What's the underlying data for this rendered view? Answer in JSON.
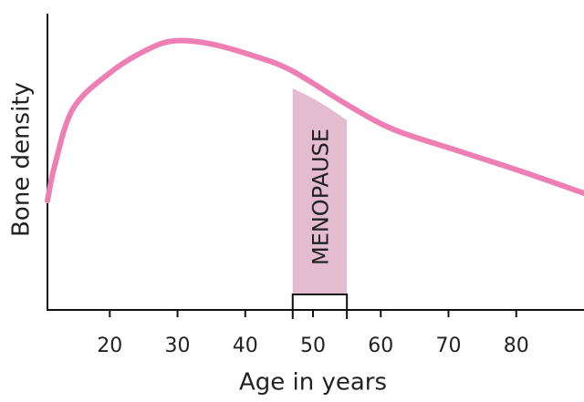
{
  "chart_data": {
    "type": "line",
    "x_label": "Age in years",
    "y_label": "Bone density",
    "x": [
      10.8,
      11.9,
      14.6,
      20,
      25.4,
      29.5,
      34.9,
      41.6,
      47,
      55.1,
      61.9,
      71.3,
      80.7,
      90
    ],
    "series": [
      {
        "color": "#ee7fb5",
        "values": [
          36.9,
          49,
          68,
          80,
          87.7,
          90.8,
          89.8,
          85.5,
          80.6,
          69.2,
          60.9,
          53.8,
          46.8,
          39.4
        ]
      }
    ],
    "xlim": [
      10.8,
      90
    ],
    "xticks": [
      20,
      30,
      40,
      50,
      60,
      70,
      80
    ],
    "ylim": [
      0,
      100
    ],
    "annotation": {
      "text": "MENOPAUSE",
      "range": [
        47,
        55
      ],
      "color": "#e3bcd0"
    }
  }
}
